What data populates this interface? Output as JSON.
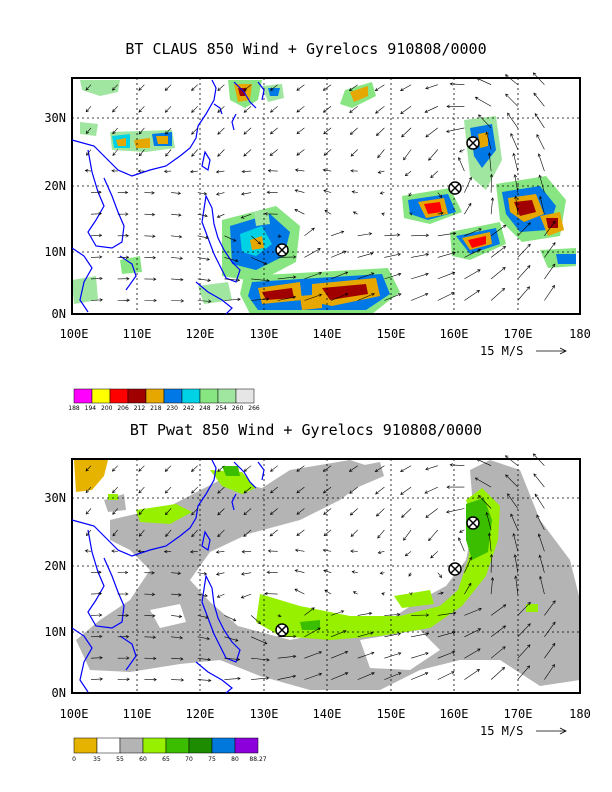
{
  "panels": [
    {
      "id": "claus",
      "title": "BT CLAUS 850 Wind + Gyrelocs 910808/0000",
      "lat_labels": [
        "30N",
        "20N",
        "10N",
        "0N"
      ],
      "lon_labels": [
        "100E",
        "110E",
        "120E",
        "130E",
        "140E",
        "150E",
        "160E",
        "170E",
        "180"
      ],
      "ref_vector_label": "15 M/S",
      "colorbar": {
        "colors": [
          "#ff00ff",
          "#ffff00",
          "#ff0000",
          "#a00000",
          "#e6a800",
          "#0078e6",
          "#00d2e6",
          "#87e682",
          "#a0e6a0",
          "#e6e6e6"
        ],
        "labels": [
          "188",
          "194",
          "200",
          "206",
          "212",
          "218",
          "230",
          "242",
          "248",
          "254",
          "260",
          "266"
        ]
      },
      "gyre_locations": [
        {
          "lon": 132.5,
          "lat": 10.0
        },
        {
          "lon": 160.2,
          "lat": 19.5
        },
        {
          "lon": 163.2,
          "lat": 26.0
        }
      ]
    },
    {
      "id": "pwat",
      "title": "BT Pwat 850 Wind + Gyrelocs 910808/0000",
      "lat_labels": [
        "30N",
        "20N",
        "10N",
        "0N"
      ],
      "lon_labels": [
        "100E",
        "110E",
        "120E",
        "130E",
        "140E",
        "150E",
        "160E",
        "170E",
        "180"
      ],
      "ref_vector_label": "15 M/S",
      "colorbar": {
        "colors": [
          "#e6b400",
          "#ffffff",
          "#b4b4b4",
          "#96f000",
          "#3cbe00",
          "#1e8c00",
          "#0078dc",
          "#8c00dc"
        ],
        "labels": [
          "0",
          "35",
          "55",
          "60",
          "65",
          "70",
          "75",
          "80",
          "88.27"
        ]
      },
      "gyre_locations": [
        {
          "lon": 132.5,
          "lat": 10.0
        },
        {
          "lon": 160.2,
          "lat": 19.5
        },
        {
          "lon": 163.2,
          "lat": 26.0
        }
      ]
    }
  ],
  "map_extent": {
    "lon": [
      100,
      180
    ],
    "lat": [
      0,
      35
    ]
  },
  "colors": {
    "coast": "#0000ff",
    "frame": "#000000"
  }
}
